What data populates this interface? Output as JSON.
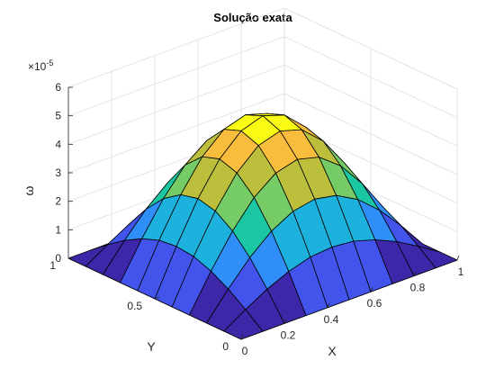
{
  "chart_data": {
    "type": "surface",
    "title": "Solução exata",
    "xlabel": "X",
    "ylabel": "Y",
    "zlabel": "ω",
    "z_exponent_label": "×10",
    "z_exponent": "-5",
    "xlim": [
      0,
      1
    ],
    "ylim": [
      0,
      1
    ],
    "zlim": [
      0,
      6e-05
    ],
    "x_ticks": [
      "0",
      "0.2",
      "0.4",
      "0.6",
      "0.8",
      "1"
    ],
    "y_ticks": [
      "0",
      "0.5",
      "1"
    ],
    "z_ticks": [
      "0",
      "1",
      "2",
      "3",
      "4",
      "5",
      "6"
    ],
    "grid": true,
    "colormap": "parula",
    "colormap_colors": [
      "#3e26a8",
      "#4254eb",
      "#2f8ef7",
      "#1cb2dd",
      "#1bc6a3",
      "#75cb65",
      "#bbbf3b",
      "#f8bd3c",
      "#f9fb15"
    ],
    "x": [
      0,
      0.1,
      0.2,
      0.3,
      0.4,
      0.5,
      0.6,
      0.7,
      0.8,
      0.9,
      1
    ],
    "y": [
      0,
      0.1,
      0.2,
      0.3,
      0.4,
      0.5,
      0.6,
      0.7,
      0.8,
      0.9,
      1
    ],
    "z": [
      [
        0,
        0,
        0,
        0,
        0,
        0,
        0,
        0,
        0,
        0,
        0
      ],
      [
        0,
        4.8e-06,
        9.2e-06,
        1.26e-05,
        1.49e-05,
        1.56e-05,
        1.49e-05,
        1.26e-05,
        9.2e-06,
        4.8e-06,
        0
      ],
      [
        0,
        9.2e-06,
        1.74e-05,
        2.39e-05,
        2.81e-05,
        2.96e-05,
        2.81e-05,
        2.39e-05,
        1.74e-05,
        9.2e-06,
        0
      ],
      [
        0,
        1.26e-05,
        2.39e-05,
        3.29e-05,
        3.87e-05,
        4.07e-05,
        3.87e-05,
        3.29e-05,
        2.39e-05,
        1.26e-05,
        0
      ],
      [
        0,
        1.49e-05,
        2.81e-05,
        3.87e-05,
        4.55e-05,
        4.78e-05,
        4.55e-05,
        3.87e-05,
        2.81e-05,
        1.49e-05,
        0
      ],
      [
        0,
        1.56e-05,
        2.96e-05,
        4.07e-05,
        4.78e-05,
        5.03e-05,
        4.78e-05,
        4.07e-05,
        2.96e-05,
        1.56e-05,
        0
      ],
      [
        0,
        1.49e-05,
        2.81e-05,
        3.87e-05,
        4.55e-05,
        4.78e-05,
        4.55e-05,
        3.87e-05,
        2.81e-05,
        1.49e-05,
        0
      ],
      [
        0,
        1.26e-05,
        2.39e-05,
        3.29e-05,
        3.87e-05,
        4.07e-05,
        3.87e-05,
        3.29e-05,
        2.39e-05,
        1.26e-05,
        0
      ],
      [
        0,
        9.2e-06,
        1.74e-05,
        2.39e-05,
        2.81e-05,
        2.96e-05,
        2.81e-05,
        2.39e-05,
        1.74e-05,
        9.2e-06,
        0
      ],
      [
        0,
        4.8e-06,
        9.2e-06,
        1.26e-05,
        1.49e-05,
        1.56e-05,
        1.49e-05,
        1.26e-05,
        9.2e-06,
        4.8e-06,
        0
      ],
      [
        0,
        0,
        0,
        0,
        0,
        0,
        0,
        0,
        0,
        0,
        0
      ]
    ]
  }
}
